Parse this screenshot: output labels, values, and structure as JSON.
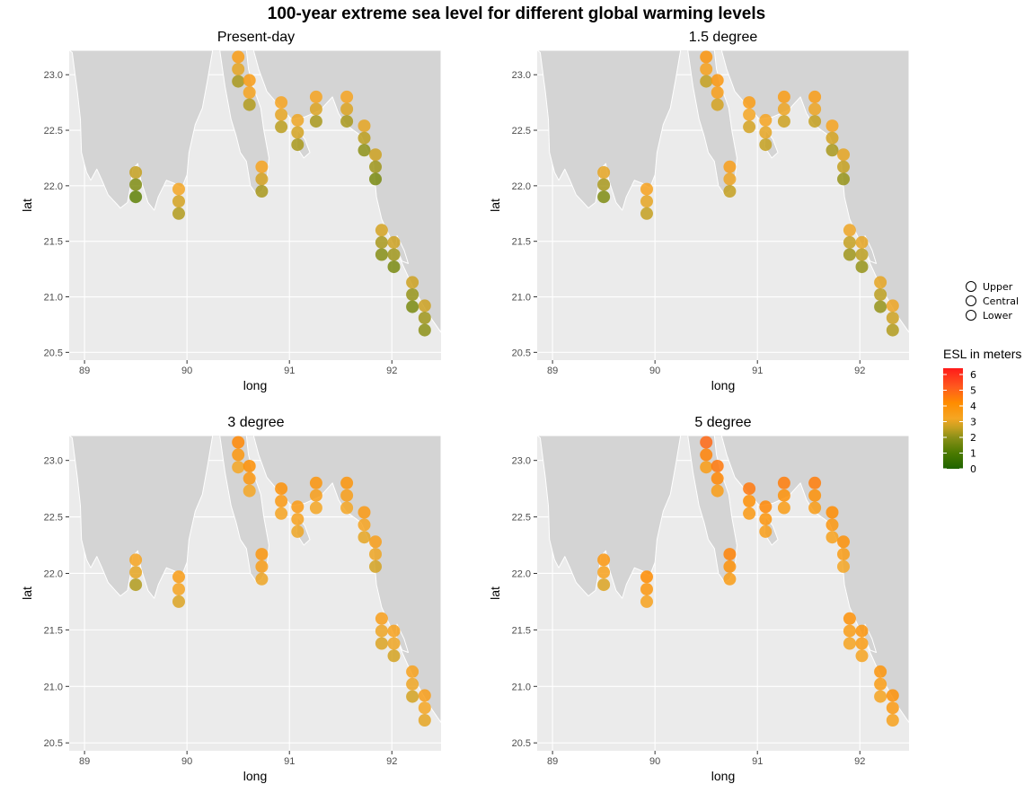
{
  "chart_data": {
    "type": "scatter",
    "title": "100-year extreme sea level for different global warming levels",
    "xlabel": "long",
    "ylabel": "lat",
    "xlim": [
      88.85,
      92.48
    ],
    "ylim": [
      20.43,
      23.22
    ],
    "x_ticks": [
      89,
      90,
      91,
      92
    ],
    "x_tick_labels": [
      "89",
      "90",
      "91",
      "92"
    ],
    "y_ticks": [
      20.5,
      21.0,
      21.5,
      22.0,
      22.5,
      23.0
    ],
    "y_tick_labels": [
      "20.5",
      "21.0",
      "21.5",
      "22.0",
      "22.5",
      "23.0"
    ],
    "grid": true,
    "stations": [
      {
        "long": 89.5,
        "lat": 22.01
      },
      {
        "long": 89.92,
        "lat": 21.86
      },
      {
        "long": 90.5,
        "lat": 23.05
      },
      {
        "long": 90.61,
        "lat": 22.84
      },
      {
        "long": 90.73,
        "lat": 22.06
      },
      {
        "long": 90.92,
        "lat": 22.64
      },
      {
        "long": 91.08,
        "lat": 22.48
      },
      {
        "long": 91.26,
        "lat": 22.69
      },
      {
        "long": 91.56,
        "lat": 22.69
      },
      {
        "long": 91.73,
        "lat": 22.43
      },
      {
        "long": 91.84,
        "lat": 22.17
      },
      {
        "long": 91.9,
        "lat": 21.49
      },
      {
        "long": 92.02,
        "lat": 21.38
      },
      {
        "long": 92.2,
        "lat": 21.02
      },
      {
        "long": 92.32,
        "lat": 20.81
      }
    ],
    "lat_offset": [
      0.11,
      0,
      -0.11
    ],
    "panels": [
      {
        "name": "Present-day",
        "esl": [
          {
            "upper": 2.6,
            "central": 1.8,
            "lower": 1.3
          },
          {
            "upper": 3.2,
            "central": 2.8,
            "lower": 2.4
          },
          {
            "upper": 3.6,
            "central": 3.0,
            "lower": 2.3
          },
          {
            "upper": 3.6,
            "central": 3.3,
            "lower": 2.4
          },
          {
            "upper": 3.3,
            "central": 2.8,
            "lower": 2.3
          },
          {
            "upper": 3.3,
            "central": 3.0,
            "lower": 2.5
          },
          {
            "upper": 3.1,
            "central": 2.8,
            "lower": 2.3
          },
          {
            "upper": 3.3,
            "central": 2.9,
            "lower": 2.3
          },
          {
            "upper": 3.3,
            "central": 2.9,
            "lower": 2.3
          },
          {
            "upper": 3.0,
            "central": 2.5,
            "lower": 2.0
          },
          {
            "upper": 2.7,
            "central": 2.2,
            "lower": 1.7
          },
          {
            "upper": 2.8,
            "central": 2.3,
            "lower": 1.9
          },
          {
            "upper": 2.7,
            "central": 2.2,
            "lower": 1.7
          },
          {
            "upper": 2.7,
            "central": 2.1,
            "lower": 1.7
          },
          {
            "upper": 2.7,
            "central": 2.2,
            "lower": 2.0
          }
        ]
      },
      {
        "name": "1.5 degree",
        "esl": [
          {
            "upper": 3.0,
            "central": 2.3,
            "lower": 1.8
          },
          {
            "upper": 3.4,
            "central": 3.0,
            "lower": 2.6
          },
          {
            "upper": 3.9,
            "central": 3.4,
            "lower": 2.6
          },
          {
            "upper": 3.8,
            "central": 3.5,
            "lower": 2.8
          },
          {
            "upper": 3.5,
            "central": 3.1,
            "lower": 2.6
          },
          {
            "upper": 3.6,
            "central": 3.2,
            "lower": 2.8
          },
          {
            "upper": 3.3,
            "central": 3.0,
            "lower": 2.6
          },
          {
            "upper": 3.6,
            "central": 3.1,
            "lower": 2.7
          },
          {
            "upper": 3.6,
            "central": 3.1,
            "lower": 2.6
          },
          {
            "upper": 3.3,
            "central": 2.8,
            "lower": 2.3
          },
          {
            "upper": 3.0,
            "central": 2.6,
            "lower": 2.1
          },
          {
            "upper": 3.1,
            "central": 2.6,
            "lower": 2.2
          },
          {
            "upper": 3.0,
            "central": 2.5,
            "lower": 2.1
          },
          {
            "upper": 3.0,
            "central": 2.5,
            "lower": 2.1
          },
          {
            "upper": 3.1,
            "central": 2.7,
            "lower": 2.4
          }
        ]
      },
      {
        "name": "3 degree",
        "esl": [
          {
            "upper": 3.3,
            "central": 3.0,
            "lower": 2.4
          },
          {
            "upper": 3.6,
            "central": 3.3,
            "lower": 2.9
          },
          {
            "upper": 4.3,
            "central": 3.8,
            "lower": 3.2
          },
          {
            "upper": 4.1,
            "central": 3.8,
            "lower": 3.2
          },
          {
            "upper": 3.8,
            "central": 3.5,
            "lower": 3.1
          },
          {
            "upper": 4.0,
            "central": 3.7,
            "lower": 3.3
          },
          {
            "upper": 3.7,
            "central": 3.4,
            "lower": 3.1
          },
          {
            "upper": 3.9,
            "central": 3.5,
            "lower": 3.2
          },
          {
            "upper": 3.9,
            "central": 3.5,
            "lower": 3.2
          },
          {
            "upper": 3.7,
            "central": 3.3,
            "lower": 3.0
          },
          {
            "upper": 3.5,
            "central": 3.1,
            "lower": 2.8
          },
          {
            "upper": 3.5,
            "central": 3.1,
            "lower": 2.9
          },
          {
            "upper": 3.4,
            "central": 3.1,
            "lower": 2.8
          },
          {
            "upper": 3.4,
            "central": 3.1,
            "lower": 2.8
          },
          {
            "upper": 3.5,
            "central": 3.2,
            "lower": 3.0
          }
        ]
      },
      {
        "name": "5 degree",
        "esl": [
          {
            "upper": 3.8,
            "central": 3.4,
            "lower": 2.9
          },
          {
            "upper": 4.2,
            "central": 3.8,
            "lower": 3.4
          },
          {
            "upper": 4.9,
            "central": 4.4,
            "lower": 3.6
          },
          {
            "upper": 4.6,
            "central": 4.3,
            "lower": 3.6
          },
          {
            "upper": 4.4,
            "central": 4.0,
            "lower": 3.6
          },
          {
            "upper": 4.6,
            "central": 4.1,
            "lower": 3.7
          },
          {
            "upper": 4.3,
            "central": 3.9,
            "lower": 3.5
          },
          {
            "upper": 4.5,
            "central": 4.0,
            "lower": 3.6
          },
          {
            "upper": 4.5,
            "central": 4.0,
            "lower": 3.6
          },
          {
            "upper": 4.2,
            "central": 3.8,
            "lower": 3.4
          },
          {
            "upper": 4.0,
            "central": 3.6,
            "lower": 3.2
          },
          {
            "upper": 4.0,
            "central": 3.6,
            "lower": 3.3
          },
          {
            "upper": 3.9,
            "central": 3.6,
            "lower": 3.3
          },
          {
            "upper": 3.9,
            "central": 3.6,
            "lower": 3.3
          },
          {
            "upper": 4.0,
            "central": 3.7,
            "lower": 3.4
          }
        ]
      }
    ],
    "shape_legend": {
      "entries": [
        "Upper",
        "Central",
        "Lower"
      ]
    },
    "color_legend": {
      "title": "ESL in meters",
      "ticks": [
        0,
        1,
        2,
        3,
        4,
        5,
        6
      ],
      "tick_labels": [
        "0",
        "1",
        "2",
        "3",
        "4",
        "5",
        "6"
      ],
      "range": [
        0,
        6.4
      ],
      "stops": [
        {
          "value": 0,
          "color": "#1e6400"
        },
        {
          "value": 1,
          "color": "#4b7a00"
        },
        {
          "value": 2,
          "color": "#8c9018"
        },
        {
          "value": 2.6,
          "color": "#c4a020"
        },
        {
          "value": 3.2,
          "color": "#f5a623"
        },
        {
          "value": 4.2,
          "color": "#ff8c00"
        },
        {
          "value": 5.2,
          "color": "#ff5a1e"
        },
        {
          "value": 6.4,
          "color": "#ff1a1a"
        }
      ]
    },
    "colors": {
      "land": "#d4d4d4",
      "sea": "#ebebeb",
      "grid": "#ffffff"
    }
  }
}
